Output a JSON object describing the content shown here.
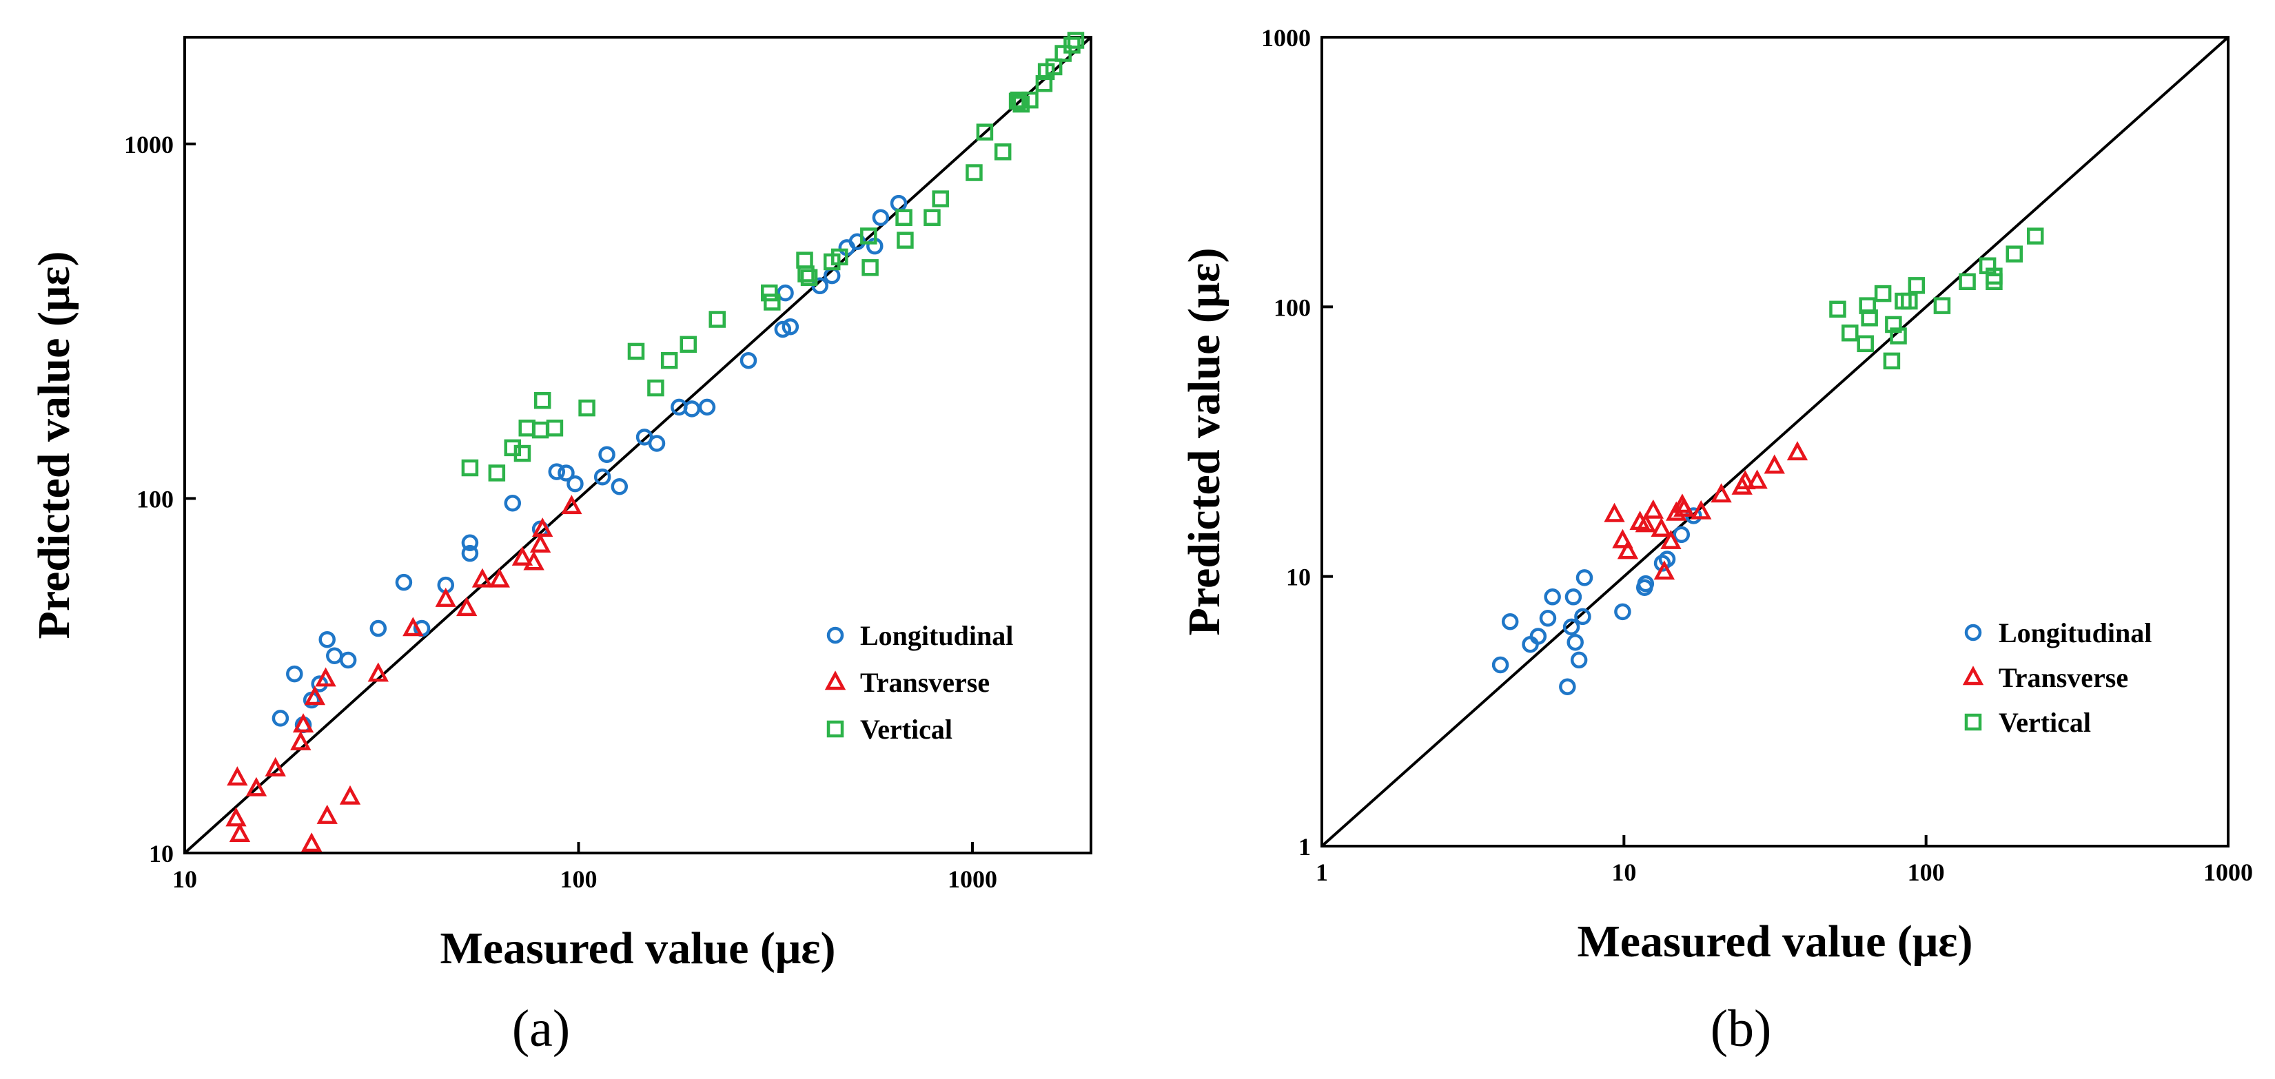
{
  "chart_data": [
    {
      "type": "scatter",
      "panel_label": "(a)",
      "title": "",
      "xlabel": "Measured value (με)",
      "ylabel": "Predicted value (με)",
      "xscale": "log",
      "yscale": "log",
      "xlim": [
        10,
        2000
      ],
      "ylim": [
        10,
        2000
      ],
      "xticks": [
        10,
        100,
        1000
      ],
      "yticks": [
        10,
        100,
        1000
      ],
      "xtick_labels": [
        "10",
        "100",
        "1000"
      ],
      "ytick_labels": [
        "10",
        "100",
        "1000"
      ],
      "reference_line": "y = x",
      "legend_position": "bottom-right",
      "series": [
        {
          "name": "Longitudinal",
          "marker": "circle",
          "color": "#1F77C8",
          "points": [
            [
              17.5,
              24
            ],
            [
              19,
              32
            ],
            [
              20,
              23
            ],
            [
              21,
              27
            ],
            [
              22,
              30
            ],
            [
              23,
              40
            ],
            [
              24,
              36
            ],
            [
              26,
              35
            ],
            [
              31,
              43
            ],
            [
              36,
              58
            ],
            [
              40,
              43
            ],
            [
              46,
              57
            ],
            [
              53,
              70
            ],
            [
              53,
              75
            ],
            [
              68,
              97
            ],
            [
              80,
              82
            ],
            [
              88,
              119
            ],
            [
              93,
              118
            ],
            [
              98,
              110
            ],
            [
              115,
              115
            ],
            [
              118,
              133
            ],
            [
              127,
              108
            ],
            [
              147,
              149
            ],
            [
              158,
              143
            ],
            [
              180,
              181
            ],
            [
              194,
              179
            ],
            [
              212,
              181
            ],
            [
              270,
              245
            ],
            [
              330,
              300
            ],
            [
              335,
              380
            ],
            [
              345,
              305
            ],
            [
              410,
              398
            ],
            [
              440,
              425
            ],
            [
              480,
              510
            ],
            [
              510,
              530
            ],
            [
              565,
              515
            ],
            [
              585,
              620
            ],
            [
              650,
              680
            ]
          ]
        },
        {
          "name": "Transverse",
          "marker": "triangle",
          "color": "#E8141C",
          "points": [
            [
              13.5,
              12.5
            ],
            [
              13.6,
              16.3
            ],
            [
              13.8,
              11.3
            ],
            [
              15.2,
              15.2
            ],
            [
              17,
              17.3
            ],
            [
              19.7,
              20.5
            ],
            [
              20,
              23
            ],
            [
              21,
              10.6
            ],
            [
              21.4,
              27.5
            ],
            [
              22.8,
              31
            ],
            [
              23,
              12.7
            ],
            [
              26.3,
              14.4
            ],
            [
              31,
              32
            ],
            [
              38,
              43
            ],
            [
              46,
              52
            ],
            [
              52,
              49
            ],
            [
              57,
              59
            ],
            [
              63,
              59
            ],
            [
              72,
              68
            ],
            [
              77,
              66
            ],
            [
              80,
              74
            ],
            [
              81,
              82
            ],
            [
              96,
              95
            ]
          ]
        },
        {
          "name": "Vertical",
          "marker": "square",
          "color": "#2DB34A",
          "points": [
            [
              53,
              122
            ],
            [
              62,
              118
            ],
            [
              68,
              139
            ],
            [
              72,
              134
            ],
            [
              74,
              158
            ],
            [
              80,
              156
            ],
            [
              81,
              189
            ],
            [
              87,
              158
            ],
            [
              105,
              180
            ],
            [
              140,
              260
            ],
            [
              157,
              205
            ],
            [
              170,
              245
            ],
            [
              190,
              272
            ],
            [
              225,
              320
            ],
            [
              305,
              380
            ],
            [
              310,
              358
            ],
            [
              375,
              470
            ],
            [
              378,
              430
            ],
            [
              385,
              420
            ],
            [
              440,
              465
            ],
            [
              460,
              480
            ],
            [
              545,
              550
            ],
            [
              550,
              448
            ],
            [
              670,
              620
            ],
            [
              675,
              535
            ],
            [
              790,
              620
            ],
            [
              830,
              700
            ],
            [
              1010,
              830
            ],
            [
              1075,
              1080
            ],
            [
              1195,
              950
            ],
            [
              1300,
              1320
            ],
            [
              1310,
              1330
            ],
            [
              1330,
              1295
            ],
            [
              1400,
              1330
            ],
            [
              1520,
              1480
            ],
            [
              1540,
              1600
            ],
            [
              1610,
              1650
            ],
            [
              1700,
              1800
            ],
            [
              1790,
              1900
            ],
            [
              1830,
              1960
            ]
          ]
        }
      ]
    },
    {
      "type": "scatter",
      "panel_label": "(b)",
      "title": "",
      "xlabel": "Measured value (με)",
      "ylabel": "Predicted value (με)",
      "xscale": "log",
      "yscale": "log",
      "xlim": [
        1,
        1000
      ],
      "ylim": [
        1,
        1000
      ],
      "xticks": [
        1,
        10,
        100,
        1000
      ],
      "yticks": [
        1,
        10,
        100,
        1000
      ],
      "xtick_labels": [
        "1",
        "10",
        "100",
        "1000"
      ],
      "ytick_labels": [
        "1",
        "10",
        "100",
        "1000"
      ],
      "reference_line": "y = x",
      "legend_position": "bottom-right",
      "series": [
        {
          "name": "Longitudinal",
          "marker": "circle",
          "color": "#1F77C8",
          "points": [
            [
              3.9,
              4.7
            ],
            [
              4.2,
              6.8
            ],
            [
              4.9,
              5.6
            ],
            [
              5.2,
              6.0
            ],
            [
              5.6,
              7.0
            ],
            [
              5.8,
              8.4
            ],
            [
              6.5,
              3.9
            ],
            [
              6.7,
              6.5
            ],
            [
              6.8,
              8.4
            ],
            [
              6.9,
              5.7
            ],
            [
              7.1,
              4.9
            ],
            [
              7.3,
              7.1
            ],
            [
              7.4,
              9.9
            ],
            [
              9.9,
              7.4
            ],
            [
              11.7,
              9.1
            ],
            [
              11.8,
              9.4
            ],
            [
              13.4,
              11.2
            ],
            [
              13.9,
              11.6
            ],
            [
              15.5,
              14.3
            ],
            [
              17,
              16.8
            ]
          ]
        },
        {
          "name": "Transverse",
          "marker": "triangle",
          "color": "#E8141C",
          "points": [
            [
              9.3,
              17
            ],
            [
              9.9,
              13.6
            ],
            [
              10.3,
              12.4
            ],
            [
              11.3,
              15.9
            ],
            [
              11.8,
              15.6
            ],
            [
              12.5,
              17.5
            ],
            [
              13.3,
              15
            ],
            [
              13.6,
              10.4
            ],
            [
              14.3,
              13.5
            ],
            [
              14.9,
              17.2
            ],
            [
              15.6,
              18.4
            ],
            [
              15.8,
              17.8
            ],
            [
              18,
              17.4
            ],
            [
              21,
              20.1
            ],
            [
              24.6,
              21.5
            ],
            [
              25.2,
              22.5
            ],
            [
              27.6,
              22.6
            ],
            [
              31.5,
              25.7
            ],
            [
              37.5,
              28.8
            ]
          ]
        },
        {
          "name": "Vertical",
          "marker": "square",
          "color": "#2DB34A",
          "points": [
            [
              51,
              98
            ],
            [
              56,
              80
            ],
            [
              63,
              73
            ],
            [
              64,
              101
            ],
            [
              65,
              91
            ],
            [
              72,
              112
            ],
            [
              77,
              63
            ],
            [
              78,
              86
            ],
            [
              81,
              78
            ],
            [
              84,
              105
            ],
            [
              88,
              105
            ],
            [
              93,
              120
            ],
            [
              113,
              101
            ],
            [
              137,
              124
            ],
            [
              160,
              142
            ],
            [
              168,
              130
            ],
            [
              168,
              124
            ],
            [
              196,
              157
            ],
            [
              230,
              183
            ]
          ]
        }
      ]
    }
  ]
}
